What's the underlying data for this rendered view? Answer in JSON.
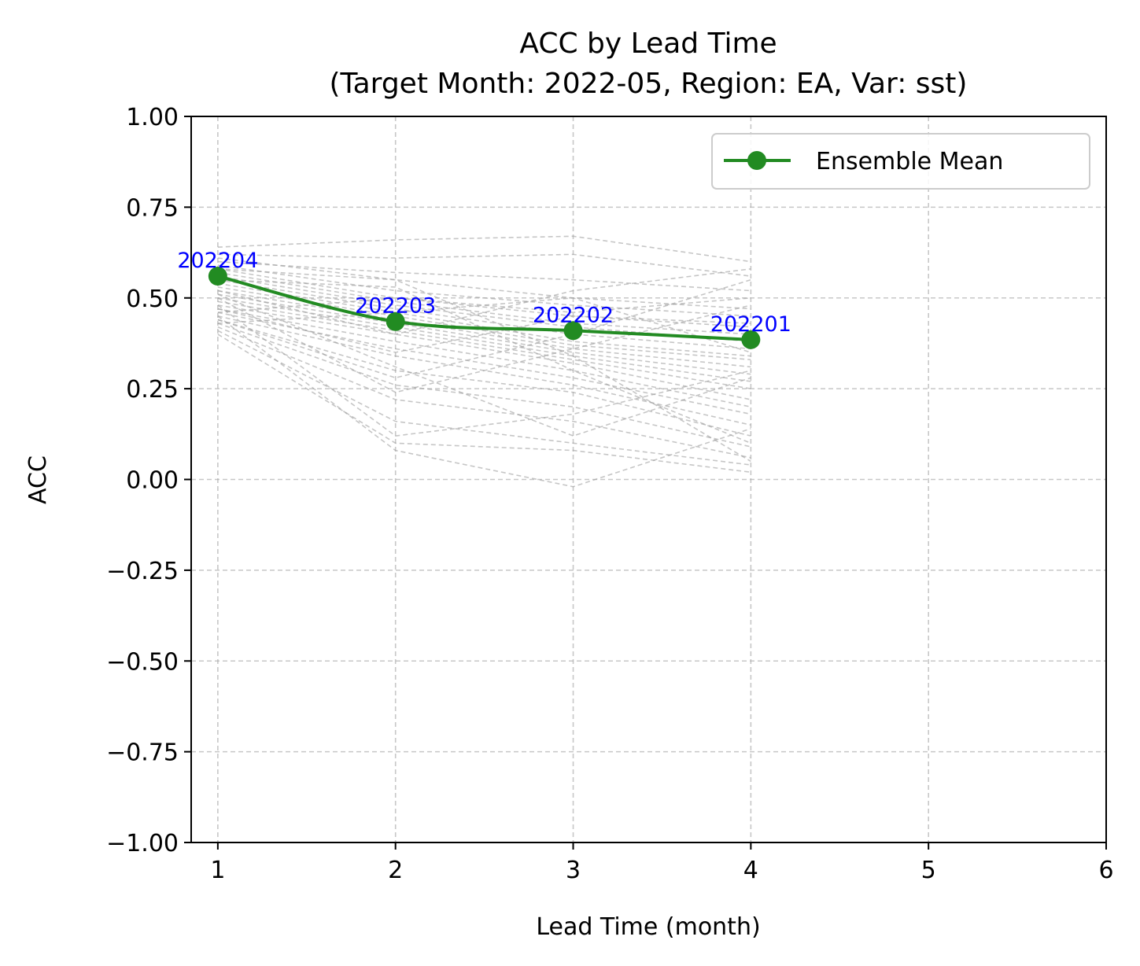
{
  "chart_data": {
    "type": "line",
    "title_line1": "ACC by Lead Time",
    "title_line2": "(Target Month: 2022-05, Region: EA, Var: sst)",
    "xlabel": "Lead Time (month)",
    "ylabel": "ACC",
    "xlim": [
      0.85,
      6.0
    ],
    "ylim": [
      -1.0,
      1.0
    ],
    "x_ticks": [
      1,
      2,
      3,
      4,
      5,
      6
    ],
    "x_tick_labels": [
      "1",
      "2",
      "3",
      "4",
      "5",
      "6"
    ],
    "y_ticks": [
      -1.0,
      -0.75,
      -0.5,
      -0.25,
      0.0,
      0.25,
      0.5,
      0.75,
      1.0
    ],
    "y_tick_labels": [
      "−1.00",
      "−0.75",
      "−0.50",
      "−0.25",
      "0.00",
      "0.25",
      "0.50",
      "0.75",
      "1.00"
    ],
    "grid": true,
    "legend_position": "top-right",
    "series": [
      {
        "name": "Ensemble Mean",
        "color": "#228b22",
        "x": [
          1,
          2,
          3,
          4
        ],
        "y": [
          0.56,
          0.435,
          0.41,
          0.385
        ],
        "point_labels": [
          "202204",
          "202203",
          "202202",
          "202201"
        ]
      }
    ],
    "members": {
      "color": "#a0a0a0",
      "style": "dashed",
      "x": [
        1,
        2,
        3,
        4
      ],
      "values": [
        [
          0.64,
          0.66,
          0.67,
          0.6
        ],
        [
          0.62,
          0.61,
          0.62,
          0.56
        ],
        [
          0.6,
          0.57,
          0.55,
          0.52
        ],
        [
          0.61,
          0.55,
          0.5,
          0.47
        ],
        [
          0.59,
          0.52,
          0.48,
          0.45
        ],
        [
          0.58,
          0.5,
          0.45,
          0.43
        ],
        [
          0.57,
          0.49,
          0.43,
          0.4
        ],
        [
          0.56,
          0.48,
          0.42,
          0.38
        ],
        [
          0.55,
          0.47,
          0.4,
          0.36
        ],
        [
          0.54,
          0.46,
          0.38,
          0.34
        ],
        [
          0.53,
          0.45,
          0.37,
          0.33
        ],
        [
          0.52,
          0.44,
          0.36,
          0.31
        ],
        [
          0.51,
          0.43,
          0.35,
          0.29
        ],
        [
          0.5,
          0.42,
          0.34,
          0.27
        ],
        [
          0.49,
          0.41,
          0.33,
          0.25
        ],
        [
          0.48,
          0.4,
          0.32,
          0.22
        ],
        [
          0.47,
          0.38,
          0.3,
          0.2
        ],
        [
          0.46,
          0.36,
          0.28,
          0.18
        ],
        [
          0.45,
          0.34,
          0.26,
          0.15
        ],
        [
          0.44,
          0.3,
          0.24,
          0.12
        ],
        [
          0.43,
          0.26,
          0.2,
          0.09
        ],
        [
          0.42,
          0.22,
          0.16,
          0.06
        ],
        [
          0.41,
          0.16,
          0.1,
          0.04
        ],
        [
          0.4,
          0.1,
          0.08,
          0.02
        ],
        [
          0.45,
          0.08,
          -0.02,
          0.14
        ],
        [
          0.48,
          0.12,
          0.18,
          0.3
        ],
        [
          0.5,
          0.24,
          0.36,
          0.48
        ],
        [
          0.44,
          0.28,
          0.4,
          0.55
        ],
        [
          0.52,
          0.4,
          0.52,
          0.58
        ],
        [
          0.47,
          0.35,
          0.45,
          0.42
        ],
        [
          0.55,
          0.53,
          0.3,
          0.1
        ],
        [
          0.58,
          0.55,
          0.34,
          0.05
        ],
        [
          0.43,
          0.46,
          0.5,
          0.35
        ],
        [
          0.46,
          0.5,
          0.46,
          0.5
        ],
        [
          0.51,
          0.31,
          0.12,
          0.28
        ]
      ]
    }
  }
}
